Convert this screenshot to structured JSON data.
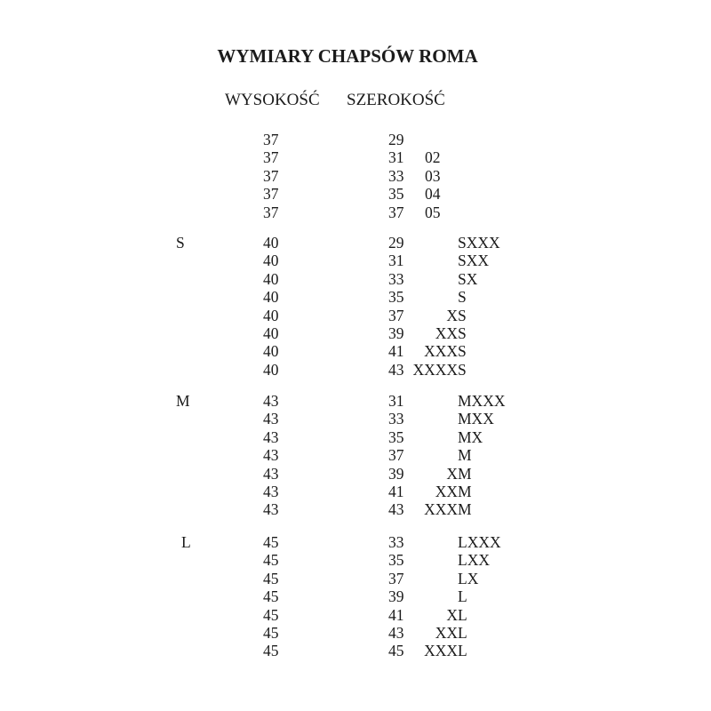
{
  "page": {
    "title": "WYMIARY CHAPSÓW ROMA"
  },
  "table": {
    "headers": {
      "height": "WYSOKOŚĆ",
      "width": "SZEROKOŚĆ"
    },
    "groups": [
      {
        "letter": "",
        "rows": [
          {
            "height": "37",
            "width": "29",
            "size": ""
          },
          {
            "height": "37",
            "width": "31",
            "size": "02"
          },
          {
            "height": "37",
            "width": "33",
            "size": "03"
          },
          {
            "height": "37",
            "width": "35",
            "size": "04"
          },
          {
            "height": "37",
            "width": "37",
            "size": "05"
          }
        ]
      },
      {
        "letter": "S",
        "rows": [
          {
            "height": "40",
            "width": "29",
            "size": "SXXX"
          },
          {
            "height": "40",
            "width": "31",
            "size": "SXX"
          },
          {
            "height": "40",
            "width": "33",
            "size": "SX"
          },
          {
            "height": "40",
            "width": "35",
            "size": "S"
          },
          {
            "height": "40",
            "width": "37",
            "size": "XS"
          },
          {
            "height": "40",
            "width": "39",
            "size": "XXS"
          },
          {
            "height": "40",
            "width": "41",
            "size": "XXXS"
          },
          {
            "height": "40",
            "width": "43",
            "size": "XXXXS"
          }
        ]
      },
      {
        "letter": "M",
        "rows": [
          {
            "height": "43",
            "width": "31",
            "size": "MXXX"
          },
          {
            "height": "43",
            "width": "33",
            "size": "MXX"
          },
          {
            "height": "43",
            "width": "35",
            "size": "MX"
          },
          {
            "height": "43",
            "width": "37",
            "size": "M"
          },
          {
            "height": "43",
            "width": "39",
            "size": "XM"
          },
          {
            "height": "43",
            "width": "41",
            "size": "XXM"
          },
          {
            "height": "43",
            "width": "43",
            "size": "XXXM"
          }
        ]
      },
      {
        "letter": "L",
        "rows": [
          {
            "height": "45",
            "width": "33",
            "size": "LXXX"
          },
          {
            "height": "45",
            "width": "35",
            "size": "LXX"
          },
          {
            "height": "45",
            "width": "37",
            "size": "LX"
          },
          {
            "height": "45",
            "width": "39",
            "size": "L"
          },
          {
            "height": "45",
            "width": "41",
            "size": "XL"
          },
          {
            "height": "45",
            "width": "43",
            "size": "XXL"
          },
          {
            "height": "45",
            "width": "45",
            "size": "XXXL"
          }
        ]
      }
    ]
  },
  "colors": {
    "text": "#1b1b1b",
    "background": "#ffffff"
  }
}
